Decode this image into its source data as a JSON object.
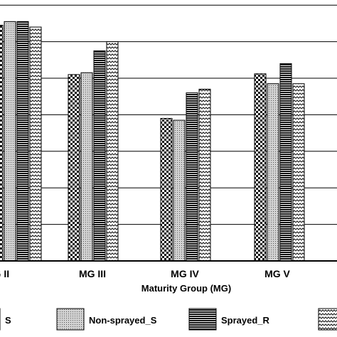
{
  "chart_data": {
    "type": "bar",
    "title": "",
    "xlabel": "Maturity Group (MG)",
    "ylabel": "",
    "categories": [
      "MG II",
      "MG III",
      "MG IV",
      "MG V"
    ],
    "ylim": [
      0,
      7
    ],
    "grid": true,
    "series": [
      {
        "name": "S",
        "pattern": "check",
        "values": [
          6.45,
          5.1,
          3.9,
          5.12
        ]
      },
      {
        "name": "Non-sprayed_S",
        "pattern": "dots",
        "values": [
          6.55,
          5.15,
          3.85,
          4.85
        ]
      },
      {
        "name": "Sprayed_R",
        "pattern": "hlines",
        "values": [
          6.55,
          5.75,
          4.6,
          5.4
        ]
      },
      {
        "name": "",
        "pattern": "waves",
        "values": [
          6.4,
          6.0,
          4.7,
          4.85
        ]
      }
    ],
    "legend_position": "bottom"
  }
}
